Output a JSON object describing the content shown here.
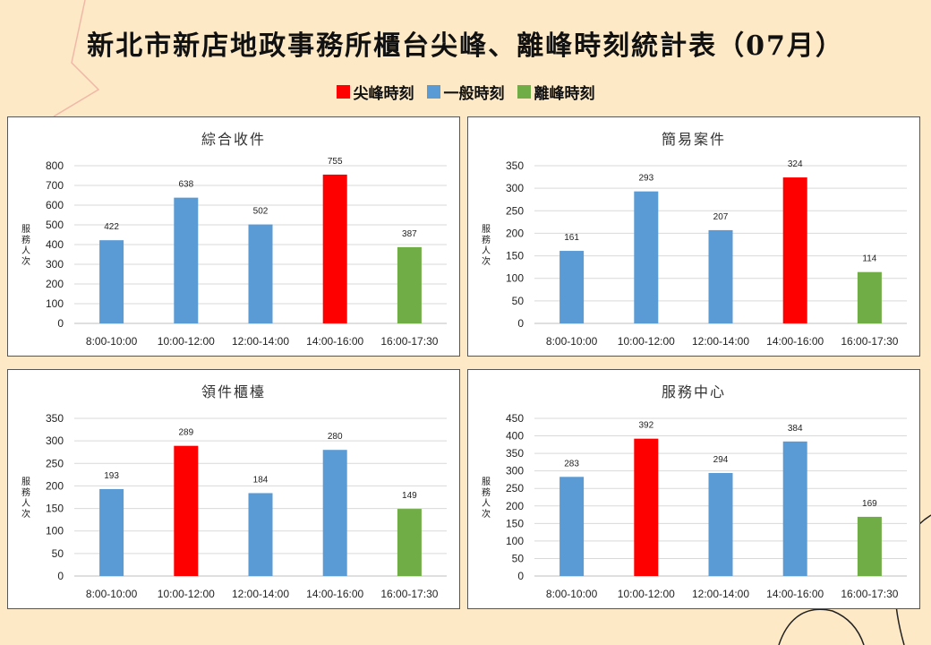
{
  "title": "新北市新店地政事務所櫃台尖峰、離峰時刻統計表（07月）",
  "legend": [
    {
      "label": "尖峰時刻",
      "color": "#ff0000"
    },
    {
      "label": "一般時刻",
      "color": "#5b9bd5"
    },
    {
      "label": "離峰時刻",
      "color": "#70ad47"
    }
  ],
  "chart_data": [
    {
      "type": "bar",
      "title": "綜合收件",
      "ylabel": "服務人次",
      "categories": [
        "8:00-10:00",
        "10:00-12:00",
        "12:00-14:00",
        "14:00-16:00",
        "16:00-17:30"
      ],
      "values": [
        422,
        638,
        502,
        755,
        387
      ],
      "bar_types": [
        "一般時刻",
        "一般時刻",
        "一般時刻",
        "尖峰時刻",
        "離峰時刻"
      ],
      "ylim": [
        0,
        800
      ],
      "ystep": 100,
      "grid": true
    },
    {
      "type": "bar",
      "title": "簡易案件",
      "ylabel": "服務人次",
      "categories": [
        "8:00-10:00",
        "10:00-12:00",
        "12:00-14:00",
        "14:00-16:00",
        "16:00-17:30"
      ],
      "values": [
        161,
        293,
        207,
        324,
        114
      ],
      "bar_types": [
        "一般時刻",
        "一般時刻",
        "一般時刻",
        "尖峰時刻",
        "離峰時刻"
      ],
      "ylim": [
        0,
        350
      ],
      "ystep": 50,
      "grid": true
    },
    {
      "type": "bar",
      "title": "領件櫃檯",
      "ylabel": "服務人次",
      "categories": [
        "8:00-10:00",
        "10:00-12:00",
        "12:00-14:00",
        "14:00-16:00",
        "16:00-17:30"
      ],
      "values": [
        193,
        289,
        184,
        280,
        149
      ],
      "bar_types": [
        "一般時刻",
        "尖峰時刻",
        "一般時刻",
        "一般時刻",
        "離峰時刻"
      ],
      "ylim": [
        0,
        350
      ],
      "ystep": 50,
      "grid": true
    },
    {
      "type": "bar",
      "title": "服務中心",
      "ylabel": "服務人次",
      "categories": [
        "8:00-10:00",
        "10:00-12:00",
        "12:00-14:00",
        "14:00-16:00",
        "16:00-17:30"
      ],
      "values": [
        283,
        392,
        294,
        384,
        169
      ],
      "bar_types": [
        "一般時刻",
        "尖峰時刻",
        "一般時刻",
        "一般時刻",
        "離峰時刻"
      ],
      "ylim": [
        0,
        450
      ],
      "ystep": 50,
      "grid": true
    }
  ]
}
